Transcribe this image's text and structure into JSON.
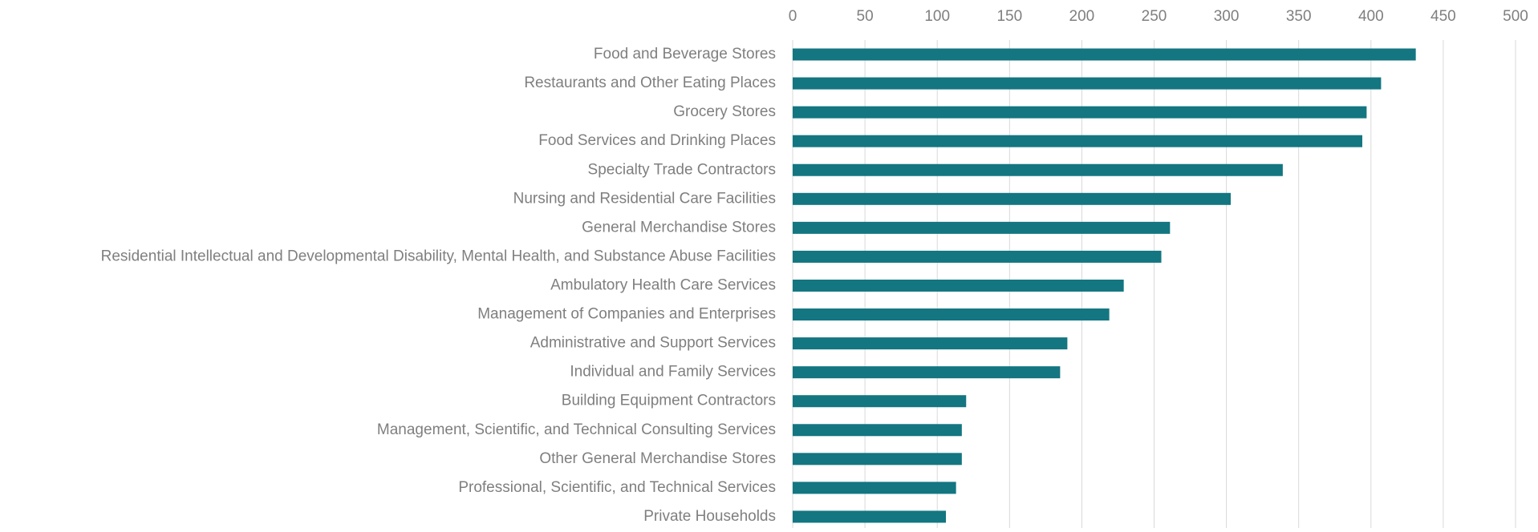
{
  "chart_data": {
    "type": "bar",
    "orientation": "horizontal",
    "categories": [
      "Food and Beverage Stores",
      "Restaurants and Other Eating Places",
      "Grocery Stores",
      "Food Services and Drinking Places",
      "Specialty Trade Contractors",
      "Nursing and Residential Care Facilities",
      "General Merchandise Stores",
      "Residential Intellectual and Developmental Disability, Mental Health, and Substance Abuse Facilities",
      "Ambulatory Health Care Services",
      "Management of Companies and Enterprises",
      "Administrative and Support Services",
      "Individual and Family Services",
      "Building Equipment Contractors",
      "Management, Scientific, and Technical Consulting Services",
      "Other General Merchandise Stores",
      "Professional, Scientific, and Technical Services",
      "Private Households"
    ],
    "values": [
      431,
      407,
      397,
      394,
      339,
      303,
      261,
      255,
      229,
      219,
      190,
      185,
      120,
      117,
      117,
      113,
      106
    ],
    "color": "#137681",
    "xlim": [
      0,
      500
    ],
    "xticks": [
      0,
      50,
      100,
      150,
      200,
      250,
      300,
      350,
      400,
      450,
      500
    ],
    "grid": true,
    "xaxis_position": "top"
  }
}
